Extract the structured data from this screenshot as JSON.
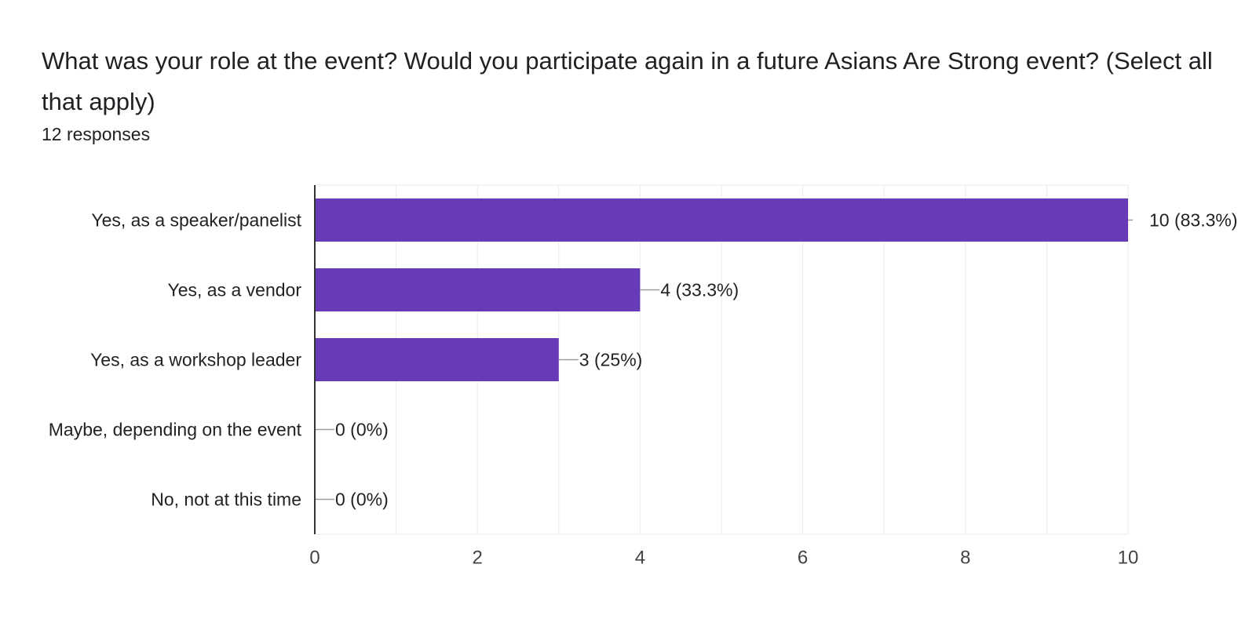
{
  "question": {
    "title": "What was your role at the event? Would you participate again in a future Asians Are Strong event? (Select all that apply)",
    "responses": "12 responses"
  },
  "chart_data": {
    "type": "bar",
    "orientation": "horizontal",
    "categories": [
      "Yes, as a speaker/panelist",
      "Yes, as a vendor",
      "Yes, as a workshop leader",
      "Maybe, depending on the event",
      "No, not at this time"
    ],
    "values": [
      10,
      4,
      3,
      0,
      0
    ],
    "data_labels": [
      "10 (83.3%)",
      "4 (33.3%)",
      "3 (25%)",
      "0 (0%)",
      "0 (0%)"
    ],
    "xlim": [
      0,
      10
    ],
    "x_ticks": [
      0,
      2,
      4,
      6,
      8,
      10
    ],
    "grid": true,
    "bar_color": "#673ab7"
  }
}
